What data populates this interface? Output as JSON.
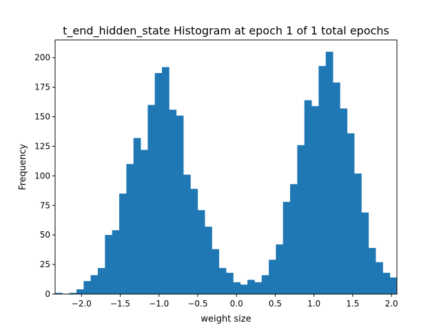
{
  "chart_data": {
    "type": "bar",
    "title": "t_end_hidden_state Histogram at epoch 1 of 1 total epochs",
    "xlabel": "weight size",
    "ylabel": "Frequency",
    "xlim": [
      -2.34,
      2.07
    ],
    "ylim": [
      0,
      215
    ],
    "grid": false,
    "bar_color": "#1f77b4",
    "x_ticks": [
      {
        "value": -2.0,
        "label": "−2.0"
      },
      {
        "value": -1.5,
        "label": "−1.5"
      },
      {
        "value": -1.0,
        "label": "−1.0"
      },
      {
        "value": -0.5,
        "label": "−0.5"
      },
      {
        "value": 0.0,
        "label": "0.0"
      },
      {
        "value": 0.5,
        "label": "0.5"
      },
      {
        "value": 1.0,
        "label": "1.0"
      },
      {
        "value": 1.5,
        "label": "1.5"
      },
      {
        "value": 2.0,
        "label": "2.0"
      }
    ],
    "y_ticks": [
      {
        "value": 0,
        "label": "0"
      },
      {
        "value": 25,
        "label": "25"
      },
      {
        "value": 50,
        "label": "50"
      },
      {
        "value": 75,
        "label": "75"
      },
      {
        "value": 100,
        "label": "100"
      },
      {
        "value": 125,
        "label": "125"
      },
      {
        "value": 150,
        "label": "150"
      },
      {
        "value": 175,
        "label": "175"
      },
      {
        "value": 200,
        "label": "200"
      }
    ],
    "bins": [
      {
        "x0": -2.34,
        "x1": -2.248,
        "count": 1
      },
      {
        "x0": -2.248,
        "x1": -2.156,
        "count": 0
      },
      {
        "x0": -2.156,
        "x1": -2.064,
        "count": 1
      },
      {
        "x0": -2.064,
        "x1": -1.972,
        "count": 4
      },
      {
        "x0": -1.972,
        "x1": -1.881,
        "count": 11
      },
      {
        "x0": -1.881,
        "x1": -1.789,
        "count": 16
      },
      {
        "x0": -1.789,
        "x1": -1.697,
        "count": 22
      },
      {
        "x0": -1.697,
        "x1": -1.605,
        "count": 50
      },
      {
        "x0": -1.605,
        "x1": -1.513,
        "count": 54
      },
      {
        "x0": -1.513,
        "x1": -1.421,
        "count": 85
      },
      {
        "x0": -1.421,
        "x1": -1.329,
        "count": 110
      },
      {
        "x0": -1.329,
        "x1": -1.237,
        "count": 132
      },
      {
        "x0": -1.237,
        "x1": -1.145,
        "count": 122
      },
      {
        "x0": -1.145,
        "x1": -1.054,
        "count": 160
      },
      {
        "x0": -1.054,
        "x1": -0.962,
        "count": 187
      },
      {
        "x0": -0.962,
        "x1": -0.87,
        "count": 192
      },
      {
        "x0": -0.87,
        "x1": -0.778,
        "count": 156
      },
      {
        "x0": -0.778,
        "x1": -0.686,
        "count": 151
      },
      {
        "x0": -0.686,
        "x1": -0.594,
        "count": 101
      },
      {
        "x0": -0.594,
        "x1": -0.502,
        "count": 89
      },
      {
        "x0": -0.502,
        "x1": -0.41,
        "count": 71
      },
      {
        "x0": -0.41,
        "x1": -0.318,
        "count": 57
      },
      {
        "x0": -0.318,
        "x1": -0.227,
        "count": 38
      },
      {
        "x0": -0.227,
        "x1": -0.135,
        "count": 22
      },
      {
        "x0": -0.135,
        "x1": -0.043,
        "count": 18
      },
      {
        "x0": -0.043,
        "x1": 0.049,
        "count": 10
      },
      {
        "x0": 0.049,
        "x1": 0.141,
        "count": 8
      },
      {
        "x0": 0.141,
        "x1": 0.233,
        "count": 12
      },
      {
        "x0": 0.233,
        "x1": 0.325,
        "count": 10
      },
      {
        "x0": 0.325,
        "x1": 0.417,
        "count": 16
      },
      {
        "x0": 0.417,
        "x1": 0.508,
        "count": 29
      },
      {
        "x0": 0.508,
        "x1": 0.6,
        "count": 42
      },
      {
        "x0": 0.6,
        "x1": 0.692,
        "count": 78
      },
      {
        "x0": 0.692,
        "x1": 0.784,
        "count": 93
      },
      {
        "x0": 0.784,
        "x1": 0.876,
        "count": 126
      },
      {
        "x0": 0.876,
        "x1": 0.968,
        "count": 164
      },
      {
        "x0": 0.968,
        "x1": 1.06,
        "count": 159
      },
      {
        "x0": 1.06,
        "x1": 1.152,
        "count": 193
      },
      {
        "x0": 1.152,
        "x1": 1.244,
        "count": 205
      },
      {
        "x0": 1.244,
        "x1": 1.335,
        "count": 179
      },
      {
        "x0": 1.335,
        "x1": 1.427,
        "count": 157
      },
      {
        "x0": 1.427,
        "x1": 1.519,
        "count": 136
      },
      {
        "x0": 1.519,
        "x1": 1.611,
        "count": 102
      },
      {
        "x0": 1.611,
        "x1": 1.703,
        "count": 69
      },
      {
        "x0": 1.703,
        "x1": 1.795,
        "count": 39
      },
      {
        "x0": 1.795,
        "x1": 1.887,
        "count": 27
      },
      {
        "x0": 1.887,
        "x1": 1.979,
        "count": 18
      },
      {
        "x0": 1.979,
        "x1": 2.07,
        "count": 14
      }
    ]
  }
}
